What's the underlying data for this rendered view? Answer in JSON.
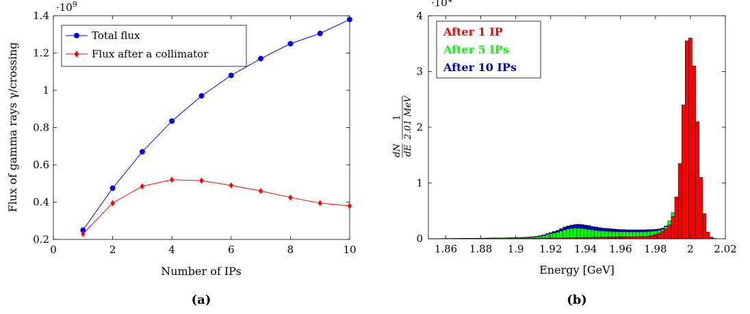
{
  "panels": {
    "a": {
      "caption": "(a)"
    },
    "b": {
      "caption": "(b)"
    }
  },
  "colors": {
    "total": "#0000ff",
    "collimator": "#ff0000",
    "ip1": "#ff0000",
    "ip5": "#00ff00",
    "ip10": "#0000cc"
  },
  "chart_data": [
    {
      "type": "line",
      "xlabel": "Number of IPs",
      "ylabel": "Flux of gamma rays γ/crossing",
      "y_multiplier": "·10",
      "y_multiplier_exp": "9",
      "xlim": [
        0,
        10
      ],
      "ylim": [
        0.2,
        1.4
      ],
      "x_ticks": [
        0,
        2,
        4,
        6,
        8,
        10
      ],
      "y_ticks": [
        0.2,
        0.4,
        0.6,
        0.8,
        1,
        1.2,
        1.4
      ],
      "x_tick_labels": [
        "0",
        "2",
        "4",
        "6",
        "8",
        "10"
      ],
      "y_tick_labels": [
        "0.2",
        "0.4",
        "0.6",
        "0.8",
        "1",
        "1.2",
        "1.4"
      ],
      "legend_position": "top-left",
      "series": [
        {
          "name": "Total flux",
          "marker": "circle",
          "color": "#0000ff",
          "x": [
            1,
            2,
            3,
            4,
            5,
            6,
            7,
            8,
            9,
            10
          ],
          "y": [
            0.25,
            0.475,
            0.67,
            0.835,
            0.97,
            1.08,
            1.17,
            1.25,
            1.305,
            1.38
          ]
        },
        {
          "name": "Flux after a collimator",
          "marker": "diamond",
          "color": "#ff0000",
          "x": [
            1,
            2,
            3,
            4,
            5,
            6,
            7,
            8,
            9,
            10
          ],
          "y": [
            0.23,
            0.395,
            0.485,
            0.52,
            0.515,
            0.49,
            0.46,
            0.425,
            0.395,
            0.38
          ]
        }
      ]
    },
    {
      "type": "bar",
      "subtype": "histogram",
      "xlabel": "Energy [GeV]",
      "ylabel_dn": "dN",
      "ylabel_de": "dE",
      "ylabel_num": "1",
      "ylabel_den": "2.01 MeV",
      "y_multiplier": "·10",
      "y_multiplier_exp": "4",
      "xlim": [
        1.85,
        2.02
      ],
      "ylim": [
        0,
        4
      ],
      "bin_width": 0.002,
      "x_ticks": [
        1.86,
        1.88,
        1.9,
        1.92,
        1.94,
        1.96,
        1.98,
        2,
        2.02
      ],
      "x_tick_labels": [
        "1.86",
        "1.88",
        "1.9",
        "1.92",
        "1.94",
        "1.96",
        "1.98",
        "2",
        "2.02"
      ],
      "y_ticks": [
        0,
        1,
        2,
        3,
        4
      ],
      "y_tick_labels": [
        "0",
        "1",
        "2",
        "3",
        "4"
      ],
      "legend_position": "top-left",
      "series": [
        {
          "name": "After 10 IPs",
          "color": "#0000cc",
          "bins": [
            [
              1.852,
              0.003
            ],
            [
              1.854,
              0.003
            ],
            [
              1.856,
              0.004
            ],
            [
              1.858,
              0.004
            ],
            [
              1.86,
              0.005
            ],
            [
              1.862,
              0.005
            ],
            [
              1.864,
              0.006
            ],
            [
              1.866,
              0.006
            ],
            [
              1.868,
              0.007
            ],
            [
              1.87,
              0.007
            ],
            [
              1.872,
              0.008
            ],
            [
              1.874,
              0.008
            ],
            [
              1.876,
              0.009
            ],
            [
              1.878,
              0.009
            ],
            [
              1.88,
              0.01
            ],
            [
              1.882,
              0.011
            ],
            [
              1.884,
              0.012
            ],
            [
              1.886,
              0.013
            ],
            [
              1.888,
              0.014
            ],
            [
              1.89,
              0.015
            ],
            [
              1.892,
              0.016
            ],
            [
              1.894,
              0.017
            ],
            [
              1.896,
              0.018
            ],
            [
              1.898,
              0.019
            ],
            [
              1.9,
              0.021
            ],
            [
              1.902,
              0.023
            ],
            [
              1.904,
              0.026
            ],
            [
              1.906,
              0.029
            ],
            [
              1.908,
              0.033
            ],
            [
              1.91,
              0.038
            ],
            [
              1.912,
              0.045
            ],
            [
              1.914,
              0.055
            ],
            [
              1.916,
              0.07
            ],
            [
              1.918,
              0.09
            ],
            [
              1.92,
              0.11
            ],
            [
              1.922,
              0.13
            ],
            [
              1.924,
              0.15
            ],
            [
              1.926,
              0.18
            ],
            [
              1.928,
              0.21
            ],
            [
              1.93,
              0.23
            ],
            [
              1.932,
              0.245
            ],
            [
              1.934,
              0.255
            ],
            [
              1.936,
              0.26
            ],
            [
              1.938,
              0.255
            ],
            [
              1.94,
              0.245
            ],
            [
              1.942,
              0.235
            ],
            [
              1.944,
              0.22
            ],
            [
              1.946,
              0.21
            ],
            [
              1.948,
              0.2
            ],
            [
              1.95,
              0.19
            ],
            [
              1.952,
              0.185
            ],
            [
              1.954,
              0.18
            ],
            [
              1.956,
              0.175
            ],
            [
              1.958,
              0.17
            ],
            [
              1.96,
              0.165
            ],
            [
              1.962,
              0.165
            ],
            [
              1.964,
              0.16
            ],
            [
              1.966,
              0.16
            ],
            [
              1.968,
              0.16
            ],
            [
              1.97,
              0.16
            ],
            [
              1.972,
              0.16
            ],
            [
              1.974,
              0.16
            ],
            [
              1.976,
              0.165
            ],
            [
              1.978,
              0.165
            ],
            [
              1.98,
              0.17
            ],
            [
              1.982,
              0.175
            ],
            [
              1.984,
              0.19
            ],
            [
              1.986,
              0.23
            ],
            [
              1.988,
              0.32
            ],
            [
              1.99,
              0.45
            ]
          ]
        },
        {
          "name": "After 5 IPs",
          "color": "#00ff00",
          "bins": [
            [
              1.852,
              0.002
            ],
            [
              1.854,
              0.002
            ],
            [
              1.856,
              0.003
            ],
            [
              1.858,
              0.003
            ],
            [
              1.86,
              0.004
            ],
            [
              1.862,
              0.004
            ],
            [
              1.864,
              0.005
            ],
            [
              1.866,
              0.005
            ],
            [
              1.868,
              0.006
            ],
            [
              1.87,
              0.006
            ],
            [
              1.872,
              0.007
            ],
            [
              1.874,
              0.007
            ],
            [
              1.876,
              0.008
            ],
            [
              1.878,
              0.008
            ],
            [
              1.88,
              0.009
            ],
            [
              1.882,
              0.009
            ],
            [
              1.884,
              0.01
            ],
            [
              1.886,
              0.011
            ],
            [
              1.888,
              0.012
            ],
            [
              1.89,
              0.013
            ],
            [
              1.892,
              0.014
            ],
            [
              1.894,
              0.015
            ],
            [
              1.896,
              0.016
            ],
            [
              1.898,
              0.017
            ],
            [
              1.9,
              0.018
            ],
            [
              1.902,
              0.02
            ],
            [
              1.904,
              0.022
            ],
            [
              1.906,
              0.025
            ],
            [
              1.908,
              0.028
            ],
            [
              1.91,
              0.032
            ],
            [
              1.912,
              0.038
            ],
            [
              1.914,
              0.046
            ],
            [
              1.916,
              0.058
            ],
            [
              1.918,
              0.074
            ],
            [
              1.92,
              0.09
            ],
            [
              1.922,
              0.105
            ],
            [
              1.924,
              0.12
            ],
            [
              1.926,
              0.14
            ],
            [
              1.928,
              0.16
            ],
            [
              1.93,
              0.175
            ],
            [
              1.932,
              0.185
            ],
            [
              1.934,
              0.19
            ],
            [
              1.936,
              0.19
            ],
            [
              1.938,
              0.185
            ],
            [
              1.94,
              0.178
            ],
            [
              1.942,
              0.17
            ],
            [
              1.944,
              0.16
            ],
            [
              1.946,
              0.152
            ],
            [
              1.948,
              0.145
            ],
            [
              1.95,
              0.14
            ],
            [
              1.952,
              0.135
            ],
            [
              1.954,
              0.132
            ],
            [
              1.956,
              0.13
            ],
            [
              1.958,
              0.128
            ],
            [
              1.96,
              0.126
            ],
            [
              1.962,
              0.125
            ],
            [
              1.964,
              0.124
            ],
            [
              1.966,
              0.124
            ],
            [
              1.968,
              0.124
            ],
            [
              1.97,
              0.125
            ],
            [
              1.972,
              0.126
            ],
            [
              1.974,
              0.128
            ],
            [
              1.976,
              0.13
            ],
            [
              1.978,
              0.135
            ],
            [
              1.98,
              0.14
            ],
            [
              1.982,
              0.15
            ],
            [
              1.984,
              0.17
            ],
            [
              1.986,
              0.22
            ],
            [
              1.988,
              0.32
            ],
            [
              1.99,
              0.47
            ]
          ]
        },
        {
          "name": "After 1 IP",
          "color": "#ff0000",
          "bins": [
            [
              1.852,
              0.001
            ],
            [
              1.854,
              0.001
            ],
            [
              1.856,
              0.001
            ],
            [
              1.858,
              0.001
            ],
            [
              1.86,
              0.001
            ],
            [
              1.862,
              0.001
            ],
            [
              1.864,
              0.001
            ],
            [
              1.866,
              0.001
            ],
            [
              1.868,
              0.001
            ],
            [
              1.87,
              0.001
            ],
            [
              1.872,
              0.002
            ],
            [
              1.874,
              0.002
            ],
            [
              1.876,
              0.002
            ],
            [
              1.878,
              0.002
            ],
            [
              1.88,
              0.002
            ],
            [
              1.882,
              0.002
            ],
            [
              1.884,
              0.003
            ],
            [
              1.886,
              0.003
            ],
            [
              1.888,
              0.003
            ],
            [
              1.89,
              0.003
            ],
            [
              1.892,
              0.004
            ],
            [
              1.894,
              0.004
            ],
            [
              1.896,
              0.004
            ],
            [
              1.898,
              0.005
            ],
            [
              1.9,
              0.005
            ],
            [
              1.902,
              0.006
            ],
            [
              1.904,
              0.006
            ],
            [
              1.906,
              0.007
            ],
            [
              1.908,
              0.008
            ],
            [
              1.91,
              0.009
            ],
            [
              1.912,
              0.01
            ],
            [
              1.914,
              0.011
            ],
            [
              1.916,
              0.012
            ],
            [
              1.918,
              0.013
            ],
            [
              1.92,
              0.014
            ],
            [
              1.922,
              0.015
            ],
            [
              1.924,
              0.016
            ],
            [
              1.926,
              0.017
            ],
            [
              1.928,
              0.018
            ],
            [
              1.93,
              0.019
            ],
            [
              1.932,
              0.02
            ],
            [
              1.934,
              0.021
            ],
            [
              1.936,
              0.022
            ],
            [
              1.938,
              0.023
            ],
            [
              1.94,
              0.024
            ],
            [
              1.942,
              0.025
            ],
            [
              1.944,
              0.026
            ],
            [
              1.946,
              0.027
            ],
            [
              1.948,
              0.028
            ],
            [
              1.95,
              0.029
            ],
            [
              1.952,
              0.03
            ],
            [
              1.954,
              0.031
            ],
            [
              1.956,
              0.032
            ],
            [
              1.958,
              0.033
            ],
            [
              1.96,
              0.034
            ],
            [
              1.962,
              0.035
            ],
            [
              1.964,
              0.036
            ],
            [
              1.966,
              0.037
            ],
            [
              1.968,
              0.038
            ],
            [
              1.97,
              0.04
            ],
            [
              1.972,
              0.042
            ],
            [
              1.974,
              0.045
            ],
            [
              1.976,
              0.05
            ],
            [
              1.978,
              0.06
            ],
            [
              1.98,
              0.08
            ],
            [
              1.982,
              0.1
            ],
            [
              1.984,
              0.13
            ],
            [
              1.986,
              0.18
            ],
            [
              1.988,
              0.25
            ],
            [
              1.99,
              0.4
            ],
            [
              1.992,
              0.75
            ],
            [
              1.994,
              1.35
            ],
            [
              1.996,
              2.4
            ],
            [
              1.998,
              3.55
            ],
            [
              2.0,
              3.6
            ],
            [
              2.002,
              3.1
            ],
            [
              2.004,
              2.1
            ],
            [
              2.006,
              1.1
            ],
            [
              2.008,
              0.45
            ],
            [
              2.01,
              0.12
            ],
            [
              2.012,
              0.03
            ],
            [
              2.014,
              0.005
            ]
          ]
        }
      ]
    }
  ]
}
